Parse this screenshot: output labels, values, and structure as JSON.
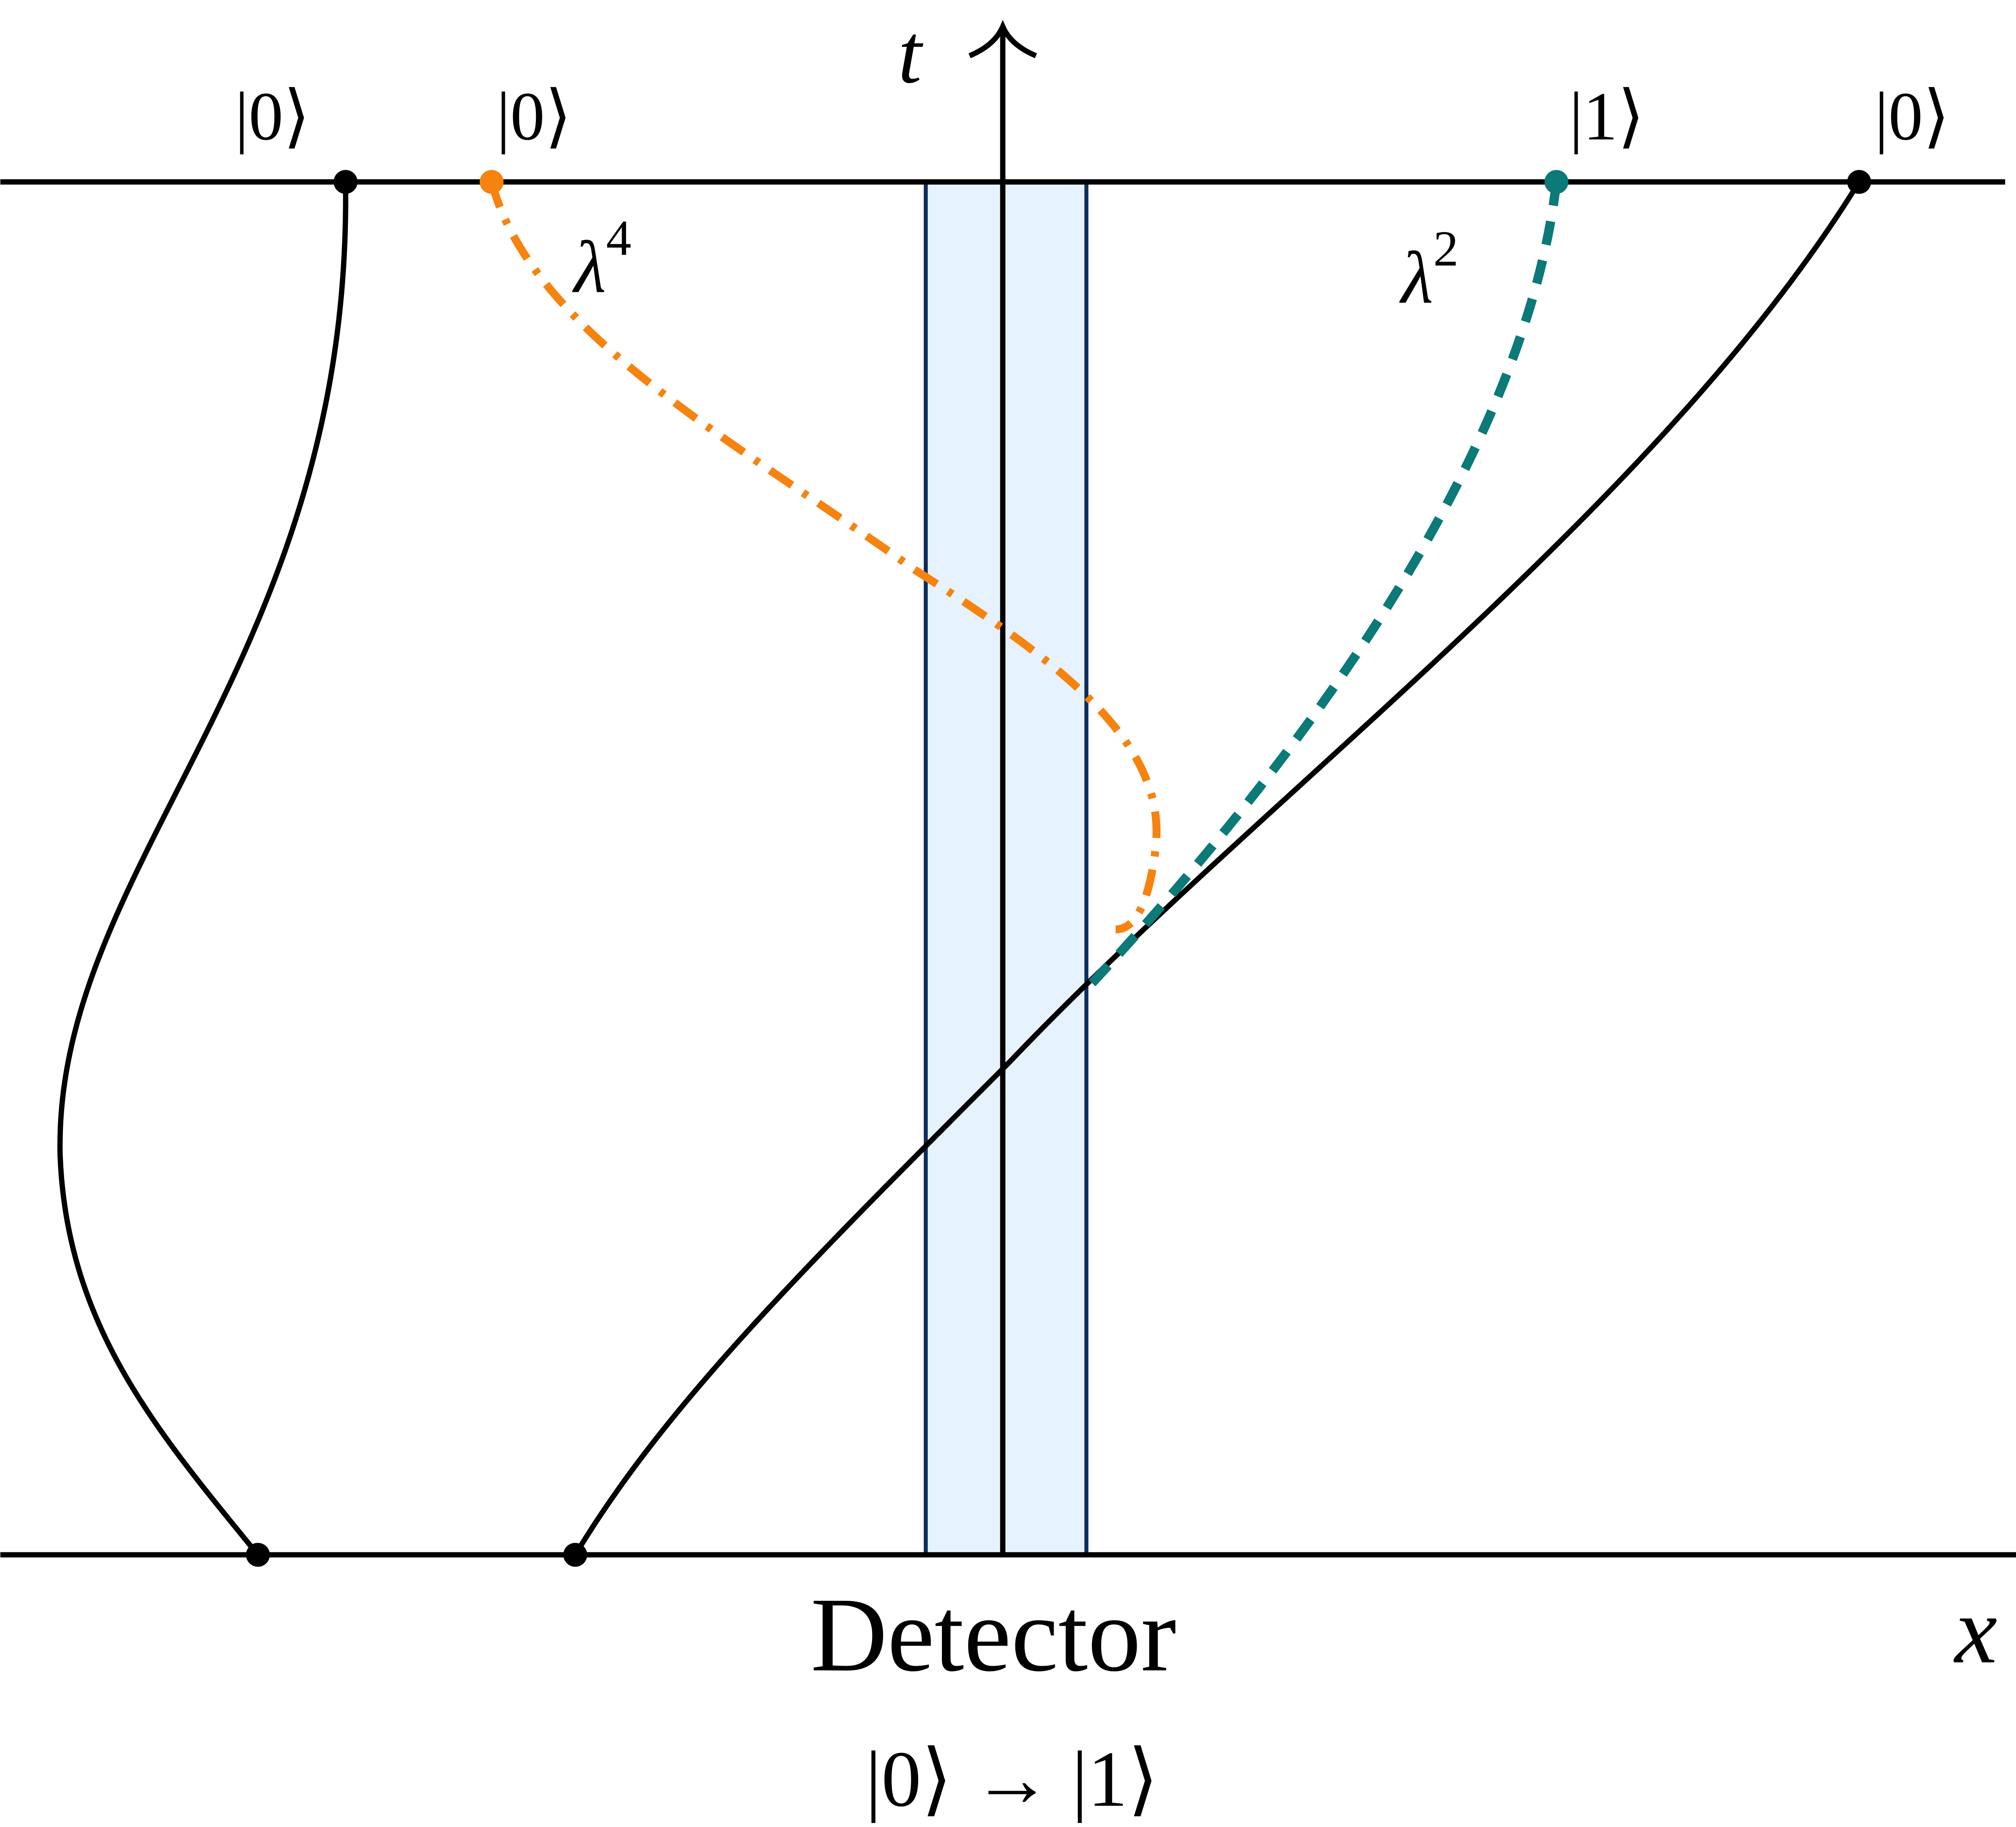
{
  "axes": {
    "t": "t",
    "x": "x"
  },
  "top_states": [
    "|0⟩",
    "|0⟩",
    "|1⟩",
    "|0⟩"
  ],
  "couplings": [
    {
      "symbol": "λ",
      "power": "4"
    },
    {
      "symbol": "λ",
      "power": "2"
    }
  ],
  "detector": {
    "label": "Detector",
    "transition": "|0⟩ → |1⟩"
  }
}
